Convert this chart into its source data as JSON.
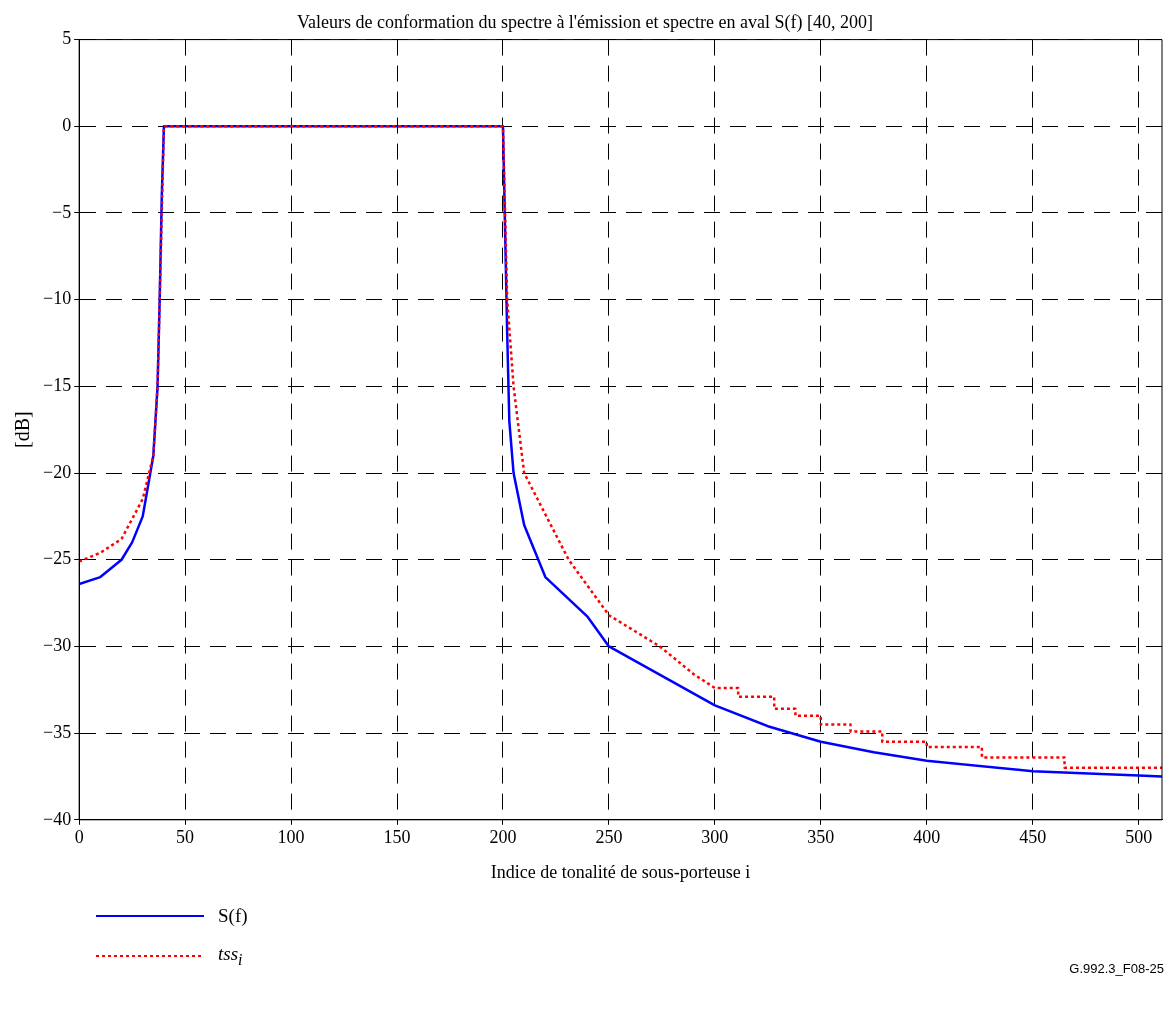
{
  "chart_data": {
    "type": "line",
    "title": "Valeurs de conformation du spectre à l'émission et spectre en aval S(f) [40, 200]",
    "xlabel": "Indice de tonalité de sous-porteuse i",
    "ylabel": "[dB]",
    "xlim": [
      0,
      511
    ],
    "xticks": [
      0,
      50,
      100,
      150,
      200,
      250,
      300,
      350,
      400,
      450,
      500
    ],
    "ylim": [
      -40,
      5
    ],
    "yticks": [
      -40,
      -35,
      -30,
      -25,
      -20,
      -15,
      -10,
      -5,
      0,
      5
    ],
    "grid": true,
    "legend": "bottom",
    "marker": "none",
    "annotations": [
      "G.992.3_F08-25"
    ],
    "series": [
      {
        "name": "S(f)",
        "color": "#0000ff",
        "line_style": "solid",
        "x": [
          0,
          10,
          20,
          25,
          30,
          35,
          37,
          38,
          39,
          40,
          200,
          201,
          202,
          203,
          205,
          210,
          220,
          240,
          250,
          275,
          300,
          325,
          350,
          375,
          400,
          450,
          500,
          511
        ],
        "values": [
          -26.4,
          -26,
          -25,
          -24,
          -22.5,
          -19,
          -15,
          -10,
          -4,
          0,
          0,
          -6,
          -12,
          -17,
          -20,
          -23,
          -26,
          -28.3,
          -30,
          -31.7,
          -33.4,
          -34.6,
          -35.5,
          -36.1,
          -36.6,
          -37.2,
          -37.45,
          -37.5
        ]
      },
      {
        "name": "tss$_{i}$",
        "color": "#ff0000",
        "line_style": "dotted",
        "x": [
          0,
          10,
          20,
          30,
          35,
          37,
          38,
          39,
          40,
          200,
          201,
          202,
          205,
          210,
          231,
          250,
          274,
          290,
          300,
          311,
          311,
          328,
          328,
          338,
          338,
          350,
          350,
          364,
          364,
          379,
          379,
          400,
          400,
          426,
          426,
          465,
          465,
          511
        ],
        "values": [
          -25.1,
          -24.6,
          -23.8,
          -21.5,
          -19,
          -15,
          -10,
          -5,
          0,
          0,
          -5,
          -10,
          -15,
          -20,
          -25,
          -28.2,
          -30,
          -31.6,
          -32.4,
          -32.4,
          -32.9,
          -32.9,
          -33.6,
          -33.6,
          -34,
          -34,
          -34.5,
          -34.5,
          -34.9,
          -34.9,
          -35.5,
          -35.5,
          -35.8,
          -35.8,
          -36.4,
          -36.4,
          -37,
          -37
        ]
      }
    ]
  }
}
